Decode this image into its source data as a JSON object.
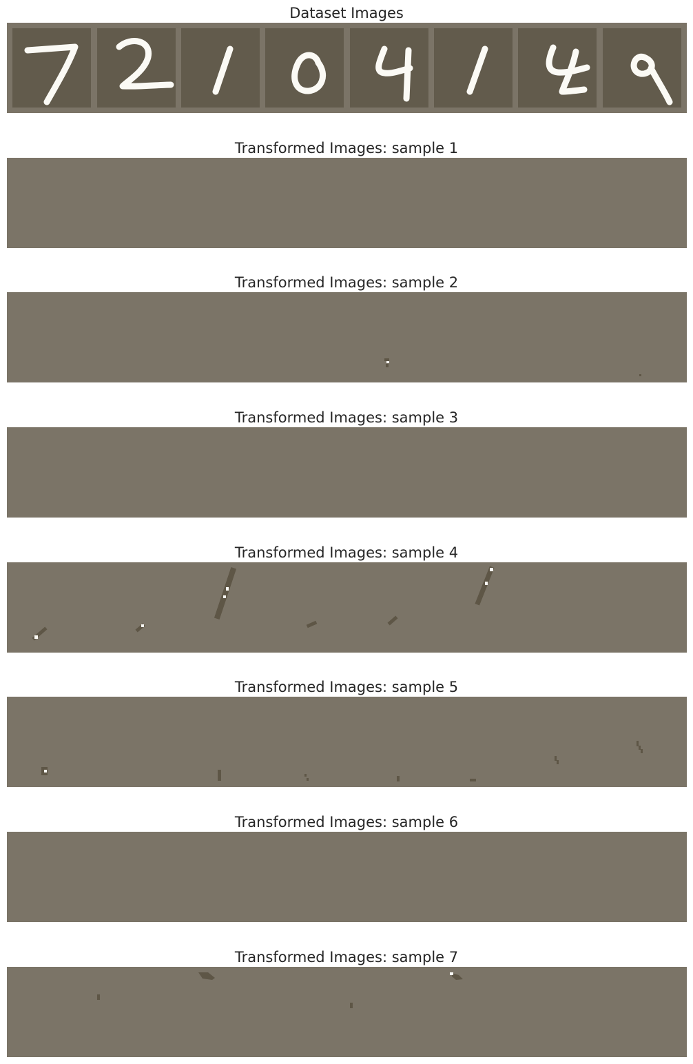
{
  "panels": [
    {
      "title": "Dataset Images"
    },
    {
      "title": "Transformed Images: sample 1"
    },
    {
      "title": "Transformed Images: sample 2"
    },
    {
      "title": "Transformed Images: sample 3"
    },
    {
      "title": "Transformed Images: sample 4"
    },
    {
      "title": "Transformed Images: sample 5"
    },
    {
      "title": "Transformed Images: sample 6"
    },
    {
      "title": "Transformed Images: sample 7"
    }
  ],
  "dataset_digits": [
    "7",
    "2",
    "1",
    "0",
    "4",
    "1",
    "4",
    "9"
  ],
  "colors": {
    "panel_background": "#7b7467",
    "tile_background": "#625b4c",
    "stroke_white": "#fbfaf5",
    "mark_dark": "#5e5646"
  }
}
